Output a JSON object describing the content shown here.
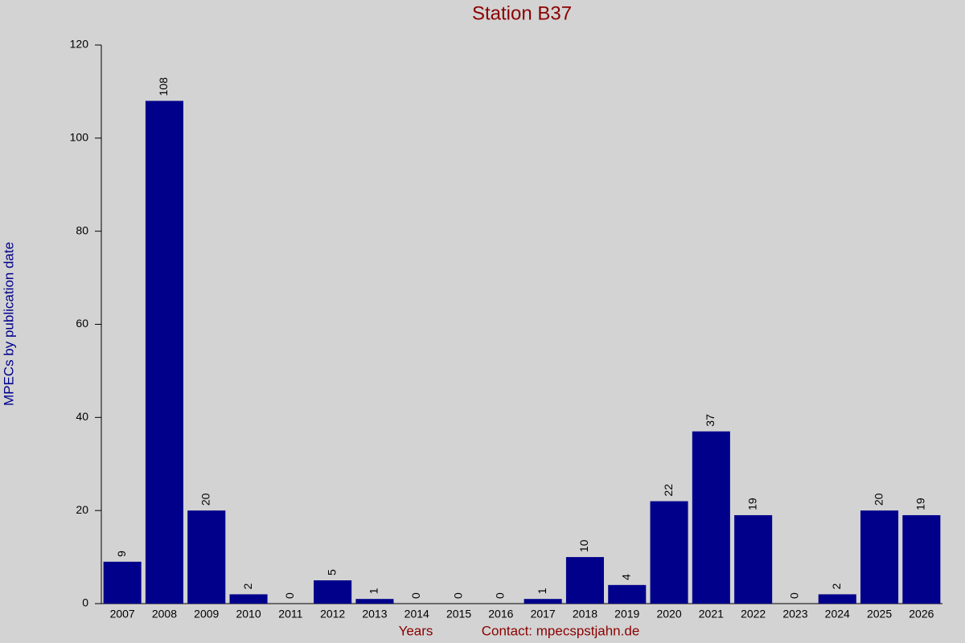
{
  "chart_data": {
    "type": "bar",
    "title": "Station B37",
    "x_label": "Years",
    "contact": "Contact: mpecspstjahn.de",
    "y_label": "MPECs by publication date",
    "categories": [
      "2007",
      "2008",
      "2009",
      "2010",
      "2011",
      "2012",
      "2013",
      "2014",
      "2015",
      "2016",
      "2017",
      "2018",
      "2019",
      "2020",
      "2021",
      "2022",
      "2023",
      "2024",
      "2025",
      "2026"
    ],
    "values": [
      9,
      108,
      20,
      2,
      0,
      5,
      1,
      0,
      0,
      0,
      1,
      10,
      4,
      22,
      37,
      19,
      0,
      2,
      20,
      19
    ],
    "color": "#00008b",
    "ylim": [
      0,
      120
    ],
    "yticks": [
      0,
      20,
      40,
      60,
      80,
      100,
      120
    ]
  }
}
